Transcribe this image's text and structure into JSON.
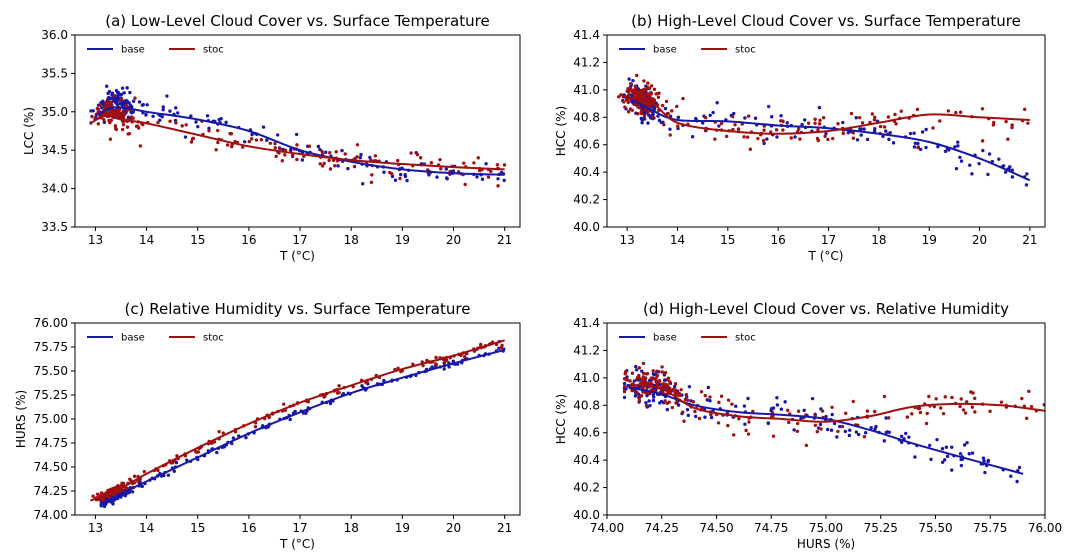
{
  "chart_data": [
    {
      "type": "scatter",
      "title": "(a) Low-Level Cloud Cover vs. Surface Temperature",
      "xlabel": "T (°C)",
      "ylabel": "LCC (%)",
      "xlim": [
        12.6,
        21.3
      ],
      "ylim": [
        33.5,
        36.0
      ],
      "xticks": [
        13,
        14,
        15,
        16,
        17,
        18,
        19,
        20,
        21
      ],
      "yticks": [
        33.5,
        34.0,
        34.5,
        35.0,
        35.5,
        36.0
      ],
      "tick_decimals": [
        0,
        1
      ],
      "legend_position": "top-left",
      "grid": false,
      "scatter_spread": 0.22,
      "cluster": {
        "x0": 13.4,
        "weight": 0.45,
        "sd": 0.35,
        "y_boost": 0.15
      },
      "series": [
        {
          "name": "base",
          "color": "#1818a8",
          "x": [
            13.0,
            13.3,
            13.6,
            14.0,
            15.0,
            16.0,
            17.0,
            18.0,
            19.0,
            20.0,
            21.0
          ],
          "y": [
            34.95,
            35.05,
            35.05,
            35.0,
            34.9,
            34.75,
            34.5,
            34.35,
            34.25,
            34.2,
            34.18
          ]
        },
        {
          "name": "stoc",
          "color": "#a01010",
          "x": [
            12.9,
            13.2,
            13.5,
            14.0,
            15.0,
            16.0,
            17.0,
            18.0,
            19.0,
            20.0,
            21.0
          ],
          "y": [
            34.85,
            34.95,
            34.9,
            34.85,
            34.7,
            34.55,
            34.45,
            34.37,
            34.32,
            34.28,
            34.25
          ]
        }
      ]
    },
    {
      "type": "scatter",
      "title": "(b) High-Level Cloud Cover vs. Surface Temperature",
      "xlabel": "T (°C)",
      "ylabel": "HCC (%)",
      "xlim": [
        12.6,
        21.3
      ],
      "ylim": [
        40.0,
        41.4
      ],
      "xticks": [
        13,
        14,
        15,
        16,
        17,
        18,
        19,
        20,
        21
      ],
      "yticks": [
        40.0,
        40.2,
        40.4,
        40.6,
        40.8,
        41.0,
        41.2,
        41.4
      ],
      "tick_decimals": [
        0,
        1
      ],
      "legend_position": "top-left",
      "grid": false,
      "scatter_spread": 0.15,
      "cluster": {
        "x0": 13.3,
        "weight": 0.5,
        "sd": 0.3,
        "y_boost": 0.05
      },
      "series": [
        {
          "name": "base",
          "color": "#1818a8",
          "x": [
            13.0,
            13.5,
            14.0,
            15.0,
            16.0,
            17.0,
            18.0,
            19.0,
            20.0,
            21.0
          ],
          "y": [
            40.95,
            40.85,
            40.78,
            40.77,
            40.74,
            40.72,
            40.68,
            40.62,
            40.5,
            40.34
          ]
        },
        {
          "name": "stoc",
          "color": "#a01010",
          "x": [
            12.9,
            13.5,
            14.0,
            15.0,
            16.0,
            17.0,
            18.0,
            19.0,
            20.0,
            21.0
          ],
          "y": [
            40.95,
            40.9,
            40.76,
            40.7,
            40.68,
            40.7,
            40.76,
            40.82,
            40.8,
            40.78
          ]
        }
      ]
    },
    {
      "type": "scatter",
      "title": "(c) Relative Humidity vs. Surface Temperature",
      "xlabel": "T (°C)",
      "ylabel": "HURS (%)",
      "xlim": [
        12.6,
        21.3
      ],
      "ylim": [
        74.0,
        76.0
      ],
      "xticks": [
        13,
        14,
        15,
        16,
        17,
        18,
        19,
        20,
        21
      ],
      "yticks": [
        74.0,
        74.25,
        74.5,
        74.75,
        75.0,
        75.25,
        75.5,
        75.75,
        76.0
      ],
      "tick_decimals": [
        0,
        2
      ],
      "legend_position": "top-left",
      "grid": false,
      "scatter_spread": 0.05,
      "cluster": {
        "x0": 13.4,
        "weight": 0.45,
        "sd": 0.3,
        "y_boost": 0.0
      },
      "series": [
        {
          "name": "base",
          "color": "#1818a8",
          "x": [
            13.2,
            13.5,
            14.0,
            15.0,
            16.0,
            17.0,
            18.0,
            19.0,
            20.0,
            21.0
          ],
          "y": [
            74.13,
            74.22,
            74.35,
            74.6,
            74.85,
            75.07,
            75.27,
            75.43,
            75.58,
            75.72
          ]
        },
        {
          "name": "stoc",
          "color": "#a01010",
          "x": [
            12.9,
            13.5,
            14.0,
            15.0,
            16.0,
            17.0,
            18.0,
            19.0,
            20.0,
            21.0
          ],
          "y": [
            74.15,
            74.28,
            74.43,
            74.7,
            74.95,
            75.17,
            75.35,
            75.52,
            75.66,
            75.82
          ]
        }
      ]
    },
    {
      "type": "scatter",
      "title": "(d) High-Level Cloud Cover vs. Relative Humidity",
      "xlabel": "HURS (%)",
      "ylabel": "HCC (%)",
      "xlim": [
        74.0,
        76.0
      ],
      "ylim": [
        40.0,
        41.4
      ],
      "xticks": [
        74.0,
        74.25,
        74.5,
        74.75,
        75.0,
        75.25,
        75.5,
        75.75,
        76.0
      ],
      "yticks": [
        40.0,
        40.2,
        40.4,
        40.6,
        40.8,
        41.0,
        41.2,
        41.4
      ],
      "tick_decimals": [
        2,
        1
      ],
      "legend_position": "top-left",
      "grid": false,
      "scatter_spread": 0.15,
      "cluster": {
        "x0": 74.2,
        "weight": 0.5,
        "sd": 0.12,
        "y_boost": 0.05
      },
      "series": [
        {
          "name": "base",
          "color": "#1818a8",
          "x": [
            74.1,
            74.25,
            74.4,
            74.6,
            74.8,
            75.0,
            75.2,
            75.4,
            75.6,
            75.9
          ],
          "y": [
            40.93,
            40.88,
            40.8,
            40.75,
            40.73,
            40.7,
            40.62,
            40.52,
            40.43,
            40.3
          ]
        },
        {
          "name": "stoc",
          "color": "#a01010",
          "x": [
            74.1,
            74.25,
            74.4,
            74.6,
            74.8,
            75.0,
            75.2,
            75.4,
            75.6,
            75.8,
            76.0
          ],
          "y": [
            40.95,
            40.92,
            40.78,
            40.72,
            40.7,
            40.68,
            40.72,
            40.79,
            40.81,
            40.8,
            40.76
          ]
        }
      ]
    }
  ]
}
